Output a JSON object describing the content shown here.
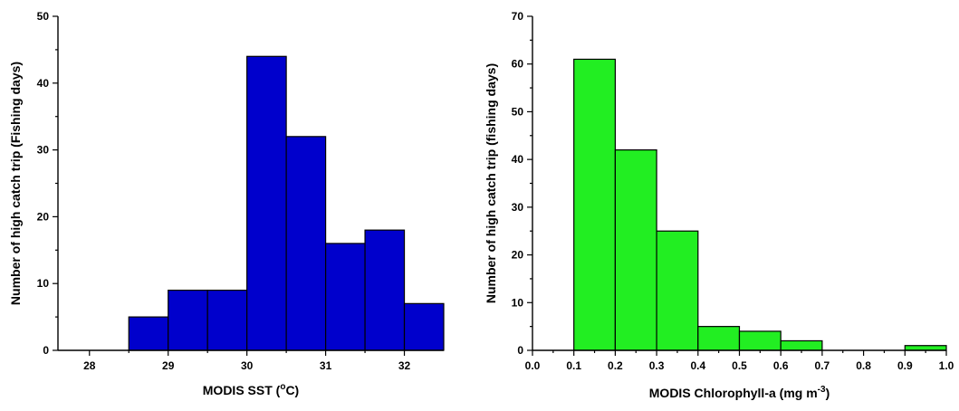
{
  "chart_data": [
    {
      "type": "bar",
      "x_bins": [
        [
          28.5,
          29
        ],
        [
          29,
          29.5
        ],
        [
          29.5,
          30
        ],
        [
          30,
          30.5
        ],
        [
          30.5,
          31
        ],
        [
          31,
          31.5
        ],
        [
          31.5,
          32
        ],
        [
          32,
          32.5
        ]
      ],
      "values": [
        5,
        9,
        9,
        44,
        32,
        16,
        18,
        7
      ],
      "xlabel_main": "MODIS SST (",
      "xlabel_sup": "o",
      "xlabel_end": "C)",
      "ylabel": "Number of high catch trip (Fishing days)",
      "xlim": [
        27.6,
        32.5
      ],
      "ylim": [
        0,
        50
      ],
      "xticks": [
        28,
        29,
        30,
        31,
        32
      ],
      "xtick_labels": [
        "28",
        "29",
        "30",
        "31",
        "32"
      ],
      "yticks": [
        0,
        10,
        20,
        30,
        40,
        50
      ],
      "ytick_labels": [
        "0",
        "10",
        "20",
        "30",
        "40",
        "50"
      ],
      "bar_color": "#0000cc",
      "grid": false
    },
    {
      "type": "bar",
      "x_bins": [
        [
          0.1,
          0.2
        ],
        [
          0.2,
          0.3
        ],
        [
          0.3,
          0.4
        ],
        [
          0.4,
          0.5
        ],
        [
          0.5,
          0.6
        ],
        [
          0.6,
          0.7
        ],
        [
          0.7,
          0.8
        ],
        [
          0.8,
          0.9
        ],
        [
          0.9,
          1.0
        ]
      ],
      "values": [
        61,
        42,
        25,
        5,
        4,
        2,
        0,
        0,
        1
      ],
      "xlabel_main": "MODIS Chlorophyll-a (mg m",
      "xlabel_sup": "-3",
      "xlabel_end": ")",
      "ylabel": "Number of high catch trip (fishing days)",
      "xlim": [
        0,
        1.0
      ],
      "ylim": [
        0,
        70
      ],
      "xticks": [
        0,
        0.1,
        0.2,
        0.3,
        0.4,
        0.5,
        0.6,
        0.7,
        0.8,
        0.9,
        1.0
      ],
      "xtick_labels": [
        "0.0",
        "0.1",
        "0.2",
        "0.3",
        "0.4",
        "0.5",
        "0.6",
        "0.7",
        "0.8",
        "0.9",
        "1.0"
      ],
      "yticks": [
        0,
        10,
        20,
        30,
        40,
        50,
        60,
        70
      ],
      "ytick_labels": [
        "0",
        "10",
        "20",
        "30",
        "40",
        "50",
        "60",
        "70"
      ],
      "bar_color": "#22ee22",
      "grid": false
    }
  ]
}
